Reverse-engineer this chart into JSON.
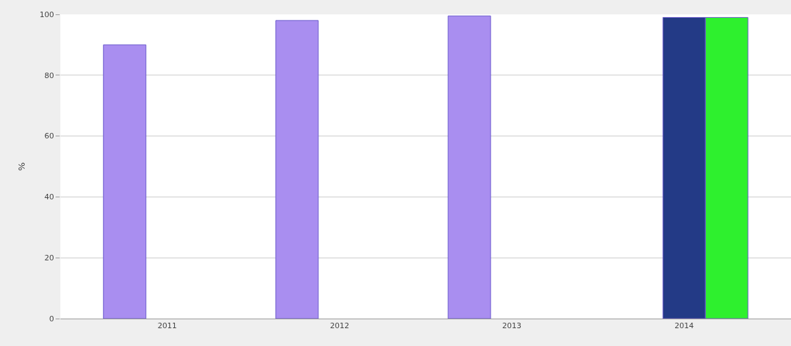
{
  "chart_data": {
    "type": "bar",
    "ylabel": "%",
    "categories": [
      "2011",
      "2012",
      "2013",
      "2014"
    ],
    "series": [
      {
        "color": "#a98ef0",
        "values": [
          90,
          98,
          99.5,
          null
        ]
      },
      {
        "color": "#233a86",
        "values": [
          null,
          null,
          null,
          99
        ]
      },
      {
        "color": "#2ef02e",
        "values": [
          null,
          null,
          null,
          99
        ]
      }
    ],
    "ylim": [
      0,
      100
    ],
    "yticks": [
      0,
      20,
      40,
      60,
      80,
      100
    ],
    "grid": "y",
    "legend": false
  }
}
